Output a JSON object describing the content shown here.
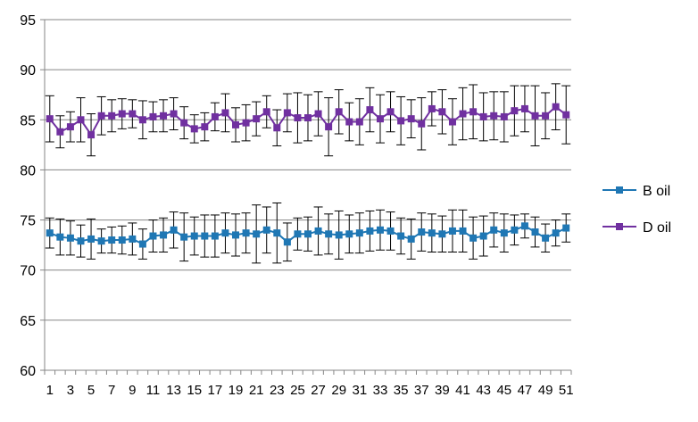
{
  "chart_data": {
    "type": "line",
    "title": "",
    "xlabel": "",
    "ylabel": "",
    "ylim": [
      60,
      95
    ],
    "yticks": [
      60,
      65,
      70,
      75,
      80,
      85,
      90,
      95
    ],
    "xticks_labels": [
      "1",
      "3",
      "5",
      "7",
      "9",
      "11",
      "13",
      "15",
      "17",
      "19",
      "21",
      "23",
      "25",
      "27",
      "29",
      "31",
      "33",
      "35",
      "37",
      "39",
      "41",
      "43",
      "45",
      "47",
      "49",
      "51"
    ],
    "grid": "horizontal",
    "legend": "right",
    "x": [
      1,
      2,
      3,
      4,
      5,
      6,
      7,
      8,
      9,
      10,
      11,
      12,
      13,
      14,
      15,
      16,
      17,
      18,
      19,
      20,
      21,
      22,
      23,
      24,
      25,
      26,
      27,
      28,
      29,
      30,
      31,
      32,
      33,
      34,
      35,
      36,
      37,
      38,
      39,
      40,
      41,
      42,
      43,
      44,
      45,
      46,
      47,
      48,
      49,
      50,
      51
    ],
    "series": [
      {
        "name": "B oil",
        "color": "#1F77B4",
        "marker": "square",
        "values": [
          73.7,
          73.3,
          73.2,
          72.9,
          73.1,
          72.9,
          73.0,
          73.0,
          73.1,
          72.6,
          73.4,
          73.5,
          74.0,
          73.3,
          73.4,
          73.4,
          73.4,
          73.7,
          73.5,
          73.7,
          73.6,
          74.0,
          73.7,
          72.8,
          73.6,
          73.6,
          73.9,
          73.6,
          73.5,
          73.6,
          73.7,
          73.9,
          74.0,
          73.9,
          73.4,
          73.1,
          73.8,
          73.7,
          73.6,
          73.9,
          73.9,
          73.2,
          73.4,
          74.0,
          73.7,
          74.0,
          74.4,
          73.8,
          73.2,
          73.7,
          74.2
        ],
        "error": [
          1.5,
          1.8,
          1.7,
          1.6,
          2.0,
          1.2,
          1.3,
          1.4,
          1.6,
          1.5,
          1.6,
          1.7,
          1.8,
          2.4,
          1.9,
          2.1,
          2.1,
          2.0,
          2.1,
          2.0,
          2.9,
          2.3,
          3.0,
          1.9,
          1.6,
          1.7,
          2.4,
          2.0,
          2.4,
          1.9,
          2.0,
          2.0,
          2.0,
          1.9,
          1.8,
          2.0,
          1.9,
          1.9,
          1.8,
          2.1,
          2.1,
          2.1,
          2.0,
          1.7,
          1.9,
          1.5,
          1.2,
          1.5,
          1.4,
          1.3,
          1.4
        ]
      },
      {
        "name": "D oil",
        "color": "#7030A0",
        "marker": "square",
        "values": [
          85.1,
          83.8,
          84.3,
          85.0,
          83.5,
          85.4,
          85.4,
          85.6,
          85.6,
          85.0,
          85.3,
          85.4,
          85.6,
          84.7,
          84.1,
          84.3,
          85.3,
          85.7,
          84.5,
          84.7,
          85.1,
          85.8,
          84.2,
          85.7,
          85.2,
          85.2,
          85.6,
          84.3,
          85.8,
          84.8,
          84.8,
          86.0,
          85.1,
          85.8,
          84.9,
          85.1,
          84.6,
          86.1,
          85.8,
          84.8,
          85.6,
          85.8,
          85.3,
          85.4,
          85.3,
          85.9,
          86.1,
          85.4,
          85.4,
          86.3,
          85.5
        ],
        "error": [
          2.3,
          1.6,
          1.5,
          2.2,
          2.1,
          1.9,
          1.6,
          1.5,
          1.4,
          1.9,
          1.5,
          1.6,
          1.6,
          1.6,
          1.4,
          1.4,
          1.4,
          1.9,
          1.7,
          1.8,
          1.7,
          1.6,
          1.8,
          1.9,
          2.5,
          2.3,
          2.2,
          2.9,
          2.2,
          1.9,
          2.3,
          2.2,
          2.4,
          2.0,
          2.4,
          1.9,
          2.6,
          1.7,
          2.2,
          2.3,
          2.6,
          2.7,
          2.4,
          2.4,
          2.5,
          2.5,
          2.3,
          3.0,
          2.3,
          2.3,
          2.9
        ]
      }
    ]
  }
}
